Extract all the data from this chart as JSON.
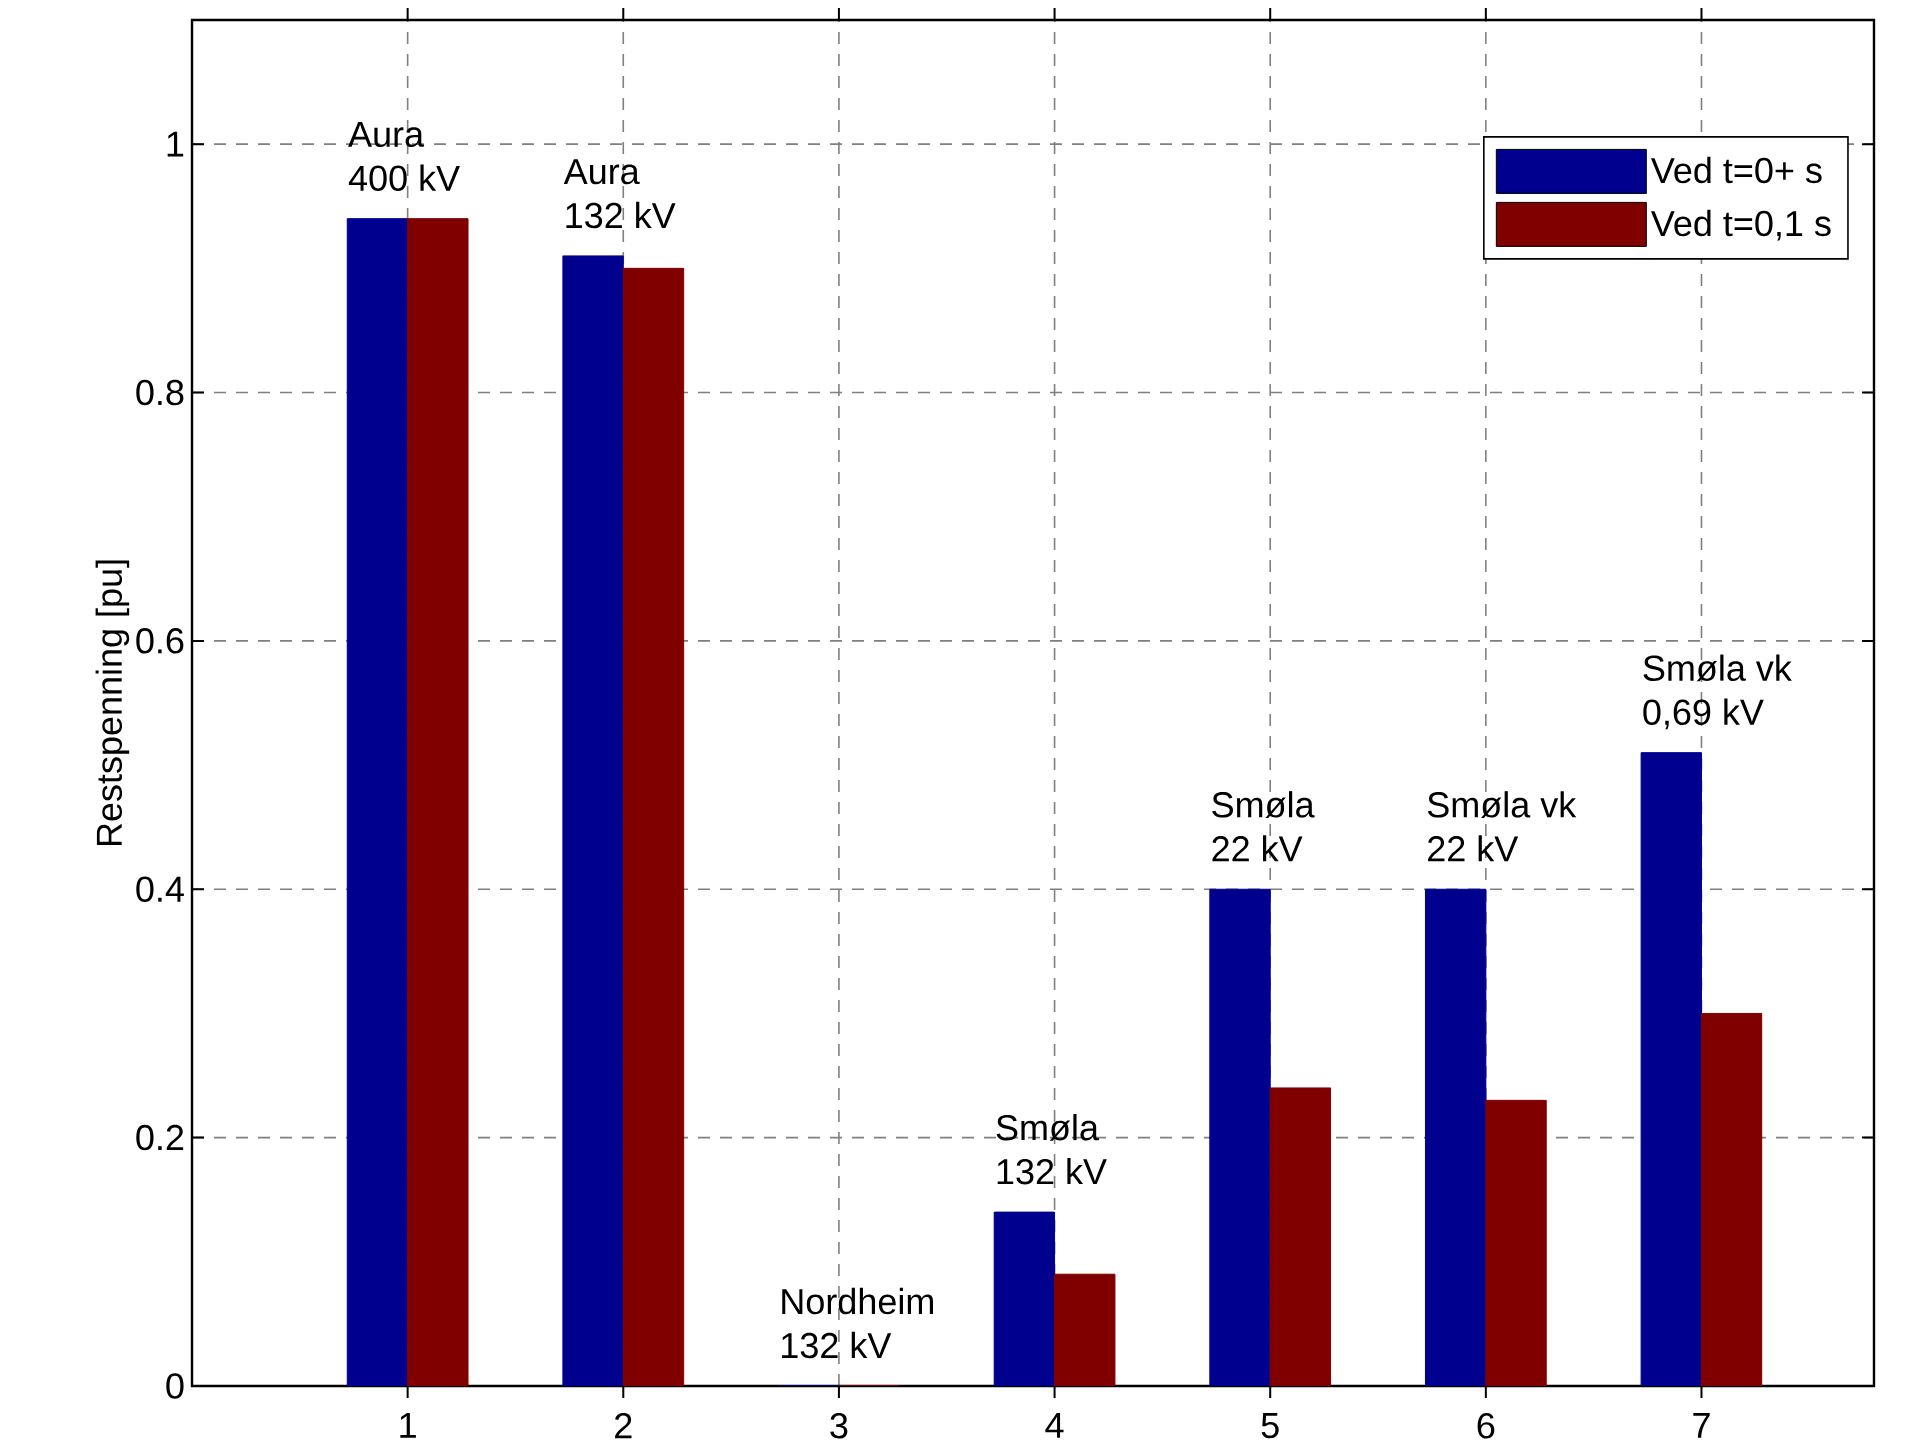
{
  "chart_data": {
    "type": "bar",
    "ylabel": "Restspenning [pu]",
    "x": [
      1,
      2,
      3,
      4,
      5,
      6,
      7
    ],
    "series": [
      {
        "name": "Ved t=0+ s",
        "color": "#00008f",
        "values": [
          0.94,
          0.91,
          0,
          0.14,
          0.4,
          0.4,
          0.51
        ]
      },
      {
        "name": "Ved t=0,1 s",
        "color": "#800000",
        "values": [
          0.94,
          0.9,
          0,
          0.09,
          0.24,
          0.23,
          0.3
        ]
      }
    ],
    "xlim": [
      0,
      7.8
    ],
    "xticks": [
      1,
      2,
      3,
      4,
      5,
      6,
      7
    ],
    "ylim": [
      0,
      1.1
    ],
    "yticks": [
      0,
      0.2,
      0.4,
      0.6,
      0.8,
      1
    ],
    "grid": true,
    "legend": "top right",
    "annotations": [
      {
        "text": "Aura",
        "x": 1,
        "y": 0.94
      },
      {
        "text": "400 kV",
        "x": 1,
        "y": 0.94
      },
      {
        "text": "Aura",
        "x": 2,
        "y": 0.91
      },
      {
        "text": "132 kV",
        "x": 2,
        "y": 0.91
      },
      {
        "text": "Nordheim",
        "x": 3,
        "y": 0
      },
      {
        "text": "132 kV",
        "x": 3,
        "y": 0
      },
      {
        "text": "Smøla",
        "x": 4,
        "y": 0.14
      },
      {
        "text": "132 kV",
        "x": 4,
        "y": 0.14
      },
      {
        "text": "Smøla",
        "x": 5,
        "y": 0.4
      },
      {
        "text": "22 kV",
        "x": 5,
        "y": 0.4
      },
      {
        "text": "Smøla vk",
        "x": 6,
        "y": 0.4
      },
      {
        "text": "22 kV",
        "x": 6,
        "y": 0.4
      },
      {
        "text": "Smøla vk",
        "x": 7,
        "y": 0.51
      },
      {
        "text": "0,69 kV",
        "x": 7,
        "y": 0.51
      }
    ]
  }
}
